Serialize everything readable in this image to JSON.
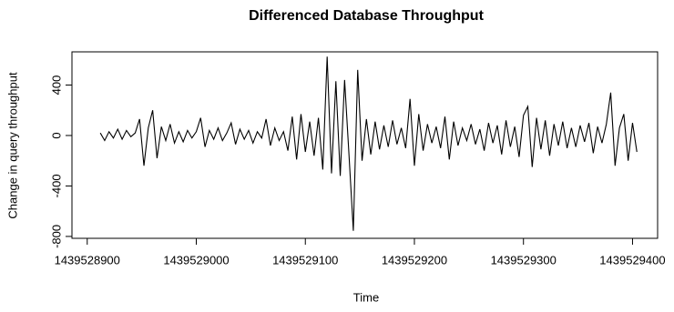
{
  "chart_data": {
    "type": "line",
    "title": "Differenced Database Throughput",
    "xlabel": "Time",
    "ylabel": "Change in query throughput",
    "x": [
      1439528912,
      1439528916,
      1439528920,
      1439528924,
      1439528928,
      1439528932,
      1439528936,
      1439528940,
      1439528944,
      1439528948,
      1439528952,
      1439528956,
      1439528960,
      1439528964,
      1439528968,
      1439528972,
      1439528976,
      1439528980,
      1439528984,
      1439528988,
      1439528992,
      1439528996,
      1439529000,
      1439529004,
      1439529008,
      1439529012,
      1439529016,
      1439529020,
      1439529024,
      1439529028,
      1439529032,
      1439529036,
      1439529040,
      1439529044,
      1439529048,
      1439529052,
      1439529056,
      1439529060,
      1439529064,
      1439529068,
      1439529072,
      1439529076,
      1439529080,
      1439529084,
      1439529088,
      1439529092,
      1439529096,
      1439529100,
      1439529104,
      1439529108,
      1439529112,
      1439529116,
      1439529120,
      1439529124,
      1439529128,
      1439529132,
      1439529136,
      1439529140,
      1439529144,
      1439529148,
      1439529152,
      1439529156,
      1439529160,
      1439529164,
      1439529168,
      1439529172,
      1439529176,
      1439529180,
      1439529184,
      1439529188,
      1439529192,
      1439529196,
      1439529200,
      1439529204,
      1439529208,
      1439529212,
      1439529216,
      1439529220,
      1439529224,
      1439529228,
      1439529232,
      1439529236,
      1439529240,
      1439529244,
      1439529248,
      1439529252,
      1439529256,
      1439529260,
      1439529264,
      1439529268,
      1439529272,
      1439529276,
      1439529280,
      1439529284,
      1439529288,
      1439529292,
      1439529296,
      1439529300,
      1439529304,
      1439529308,
      1439529312,
      1439529316,
      1439529320,
      1439529324,
      1439529328,
      1439529332,
      1439529336,
      1439529340,
      1439529344,
      1439529348,
      1439529352,
      1439529356,
      1439529360,
      1439529364,
      1439529368,
      1439529372,
      1439529376,
      1439529380,
      1439529384,
      1439529388,
      1439529392,
      1439529396,
      1439529400,
      1439529404
    ],
    "values": [
      20,
      -40,
      30,
      -20,
      50,
      -30,
      40,
      -10,
      20,
      130,
      -240,
      60,
      200,
      -180,
      70,
      -40,
      90,
      -60,
      30,
      -50,
      40,
      -20,
      30,
      140,
      -90,
      40,
      -30,
      60,
      -40,
      20,
      100,
      -70,
      50,
      -30,
      40,
      -60,
      30,
      -20,
      130,
      -80,
      60,
      -40,
      30,
      -120,
      150,
      -190,
      170,
      -130,
      110,
      -160,
      140,
      -270,
      625,
      -300,
      430,
      -320,
      440,
      -150,
      -755,
      520,
      -200,
      130,
      -150,
      110,
      -110,
      80,
      -90,
      120,
      -70,
      60,
      -100,
      290,
      -240,
      170,
      -120,
      90,
      -60,
      70,
      -100,
      150,
      -190,
      110,
      -80,
      60,
      -40,
      90,
      -70,
      50,
      -120,
      100,
      -60,
      80,
      -150,
      120,
      -90,
      70,
      -170,
      160,
      230,
      -250,
      140,
      -110,
      120,
      -160,
      90,
      -80,
      110,
      -100,
      60,
      -90,
      80,
      -50,
      100,
      -140,
      70,
      -60,
      90,
      340,
      -240,
      60,
      170,
      -200,
      100,
      -130
    ],
    "color": "#000000",
    "xlim": [
      1439528886,
      1439529423
    ],
    "xticks": [
      1439528900,
      1439529000,
      1439529100,
      1439529200,
      1439529300,
      1439529400
    ],
    "ylim": [
      -815,
      663
    ],
    "yticks": [
      -800,
      -400,
      0,
      400
    ]
  }
}
